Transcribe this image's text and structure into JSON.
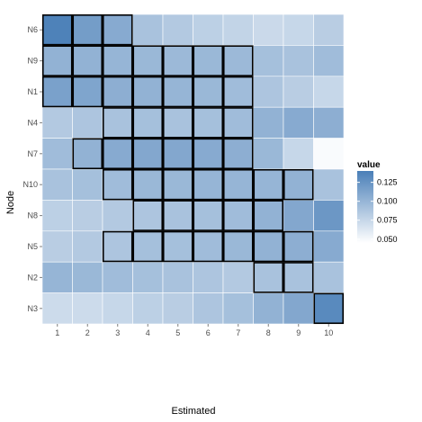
{
  "chart_data": {
    "type": "heatmap",
    "xlabel": "Estimated",
    "ylabel": "Node",
    "x_categories": [
      "1",
      "2",
      "3",
      "4",
      "5",
      "6",
      "7",
      "8",
      "9",
      "10"
    ],
    "y_categories": [
      "N6",
      "N9",
      "N1",
      "N4",
      "N7",
      "N10",
      "N8",
      "N5",
      "N2",
      "N3"
    ],
    "grid": true,
    "legend": {
      "title": "value",
      "position": "right",
      "breaks": [
        0.125,
        0.1,
        0.075,
        0.05
      ],
      "break_labels": [
        "0.125",
        "0.100",
        "0.075",
        "0.050"
      ],
      "range": [
        0.045,
        0.14
      ],
      "low_color": "#ffffff",
      "high_color": "#4a7fb8"
    },
    "values": [
      [
        0.138,
        0.118,
        0.108,
        0.09,
        0.085,
        0.08,
        0.077,
        0.073,
        0.075,
        0.082
      ],
      [
        0.102,
        0.102,
        0.1,
        0.098,
        0.097,
        0.098,
        0.097,
        0.092,
        0.09,
        0.095
      ],
      [
        0.115,
        0.112,
        0.105,
        0.102,
        0.1,
        0.098,
        0.095,
        0.088,
        0.082,
        0.075
      ],
      [
        0.085,
        0.088,
        0.09,
        0.092,
        0.09,
        0.092,
        0.095,
        0.102,
        0.108,
        0.105
      ],
      [
        0.095,
        0.102,
        0.108,
        0.11,
        0.11,
        0.108,
        0.105,
        0.098,
        0.075,
        0.048
      ],
      [
        0.09,
        0.092,
        0.095,
        0.098,
        0.098,
        0.1,
        0.1,
        0.1,
        0.102,
        0.09
      ],
      [
        0.08,
        0.082,
        0.085,
        0.088,
        0.09,
        0.092,
        0.095,
        0.102,
        0.11,
        0.122
      ],
      [
        0.082,
        0.085,
        0.088,
        0.092,
        0.092,
        0.095,
        0.098,
        0.102,
        0.105,
        0.108
      ],
      [
        0.1,
        0.098,
        0.095,
        0.092,
        0.09,
        0.088,
        0.085,
        0.09,
        0.09,
        0.09
      ],
      [
        0.072,
        0.072,
        0.075,
        0.08,
        0.082,
        0.088,
        0.092,
        0.102,
        0.11,
        0.132
      ]
    ],
    "outlined_cells": [
      {
        "row": "N6",
        "cols": [
          "1",
          "2",
          "3"
        ]
      },
      {
        "row": "N9",
        "cols": [
          "1",
          "2",
          "3",
          "4",
          "5",
          "6",
          "7"
        ]
      },
      {
        "row": "N1",
        "cols": [
          "1",
          "2",
          "3",
          "4",
          "5",
          "6",
          "7"
        ]
      },
      {
        "row": "N4",
        "cols": [
          "3",
          "4",
          "5",
          "6",
          "7"
        ]
      },
      {
        "row": "N7",
        "cols": [
          "2",
          "3",
          "4",
          "5",
          "6",
          "7"
        ]
      },
      {
        "row": "N10",
        "cols": [
          "3",
          "4",
          "5",
          "6",
          "7",
          "8",
          "9"
        ]
      },
      {
        "row": "N8",
        "cols": [
          "4",
          "5",
          "6",
          "7",
          "8"
        ]
      },
      {
        "row": "N5",
        "cols": [
          "3",
          "4",
          "5",
          "6",
          "7",
          "8",
          "9"
        ]
      },
      {
        "row": "N2",
        "cols": [
          "8",
          "9"
        ]
      },
      {
        "row": "N3",
        "cols": [
          "10"
        ]
      }
    ]
  }
}
